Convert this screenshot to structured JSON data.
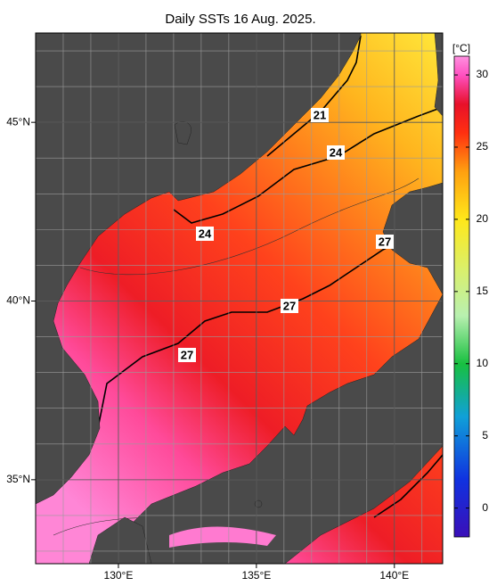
{
  "title": "Daily SSTs 16 Aug. 2025.",
  "map": {
    "xlim": [
      127,
      141.75
    ],
    "ylim": [
      32.65,
      47.5
    ],
    "xticks": [
      {
        "value": 130,
        "label": "130°E"
      },
      {
        "value": 135,
        "label": "135°E"
      },
      {
        "value": 140,
        "label": "140°E"
      }
    ],
    "yticks": [
      {
        "value": 35,
        "label": "35°N"
      },
      {
        "value": 40,
        "label": "40°N"
      },
      {
        "value": 45,
        "label": "45°N"
      }
    ],
    "grid": true,
    "contour_labels": [
      "21",
      "24",
      "24",
      "27",
      "27",
      "27"
    ]
  },
  "colorbar": {
    "unit": "[°C]",
    "lim": [
      -2,
      31.3
    ],
    "ticks": [
      0,
      5,
      10,
      15,
      20,
      25,
      30
    ]
  }
}
